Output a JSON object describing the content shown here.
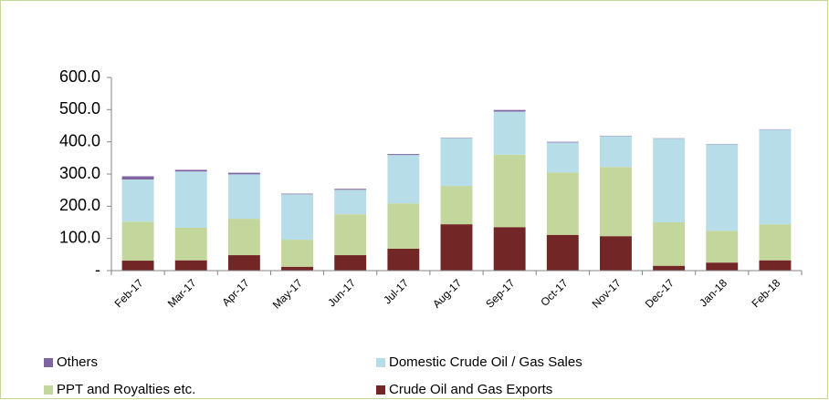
{
  "chart_data": {
    "type": "stacked_bar",
    "categories": [
      "Feb-17",
      "Mar-17",
      "Apr-17",
      "May-17",
      "Jun-17",
      "Jul-17",
      "Aug-17",
      "Sep-17",
      "Oct-17",
      "Nov-17",
      "Dec-17",
      "Jan-18",
      "Feb-18"
    ],
    "series": [
      {
        "name": "Others",
        "color": "#8064a2",
        "values": [
          10,
          5,
          5,
          2,
          3,
          3,
          1,
          5,
          2,
          1,
          1,
          1,
          1
        ]
      },
      {
        "name": "Domestic Crude Oil / Gas Sales",
        "color": "#b7dee8",
        "values": [
          131,
          175,
          138,
          141,
          76,
          150,
          149,
          134,
          93,
          96,
          260,
          268,
          294
        ]
      },
      {
        "name": "PPT and Royalties etc.",
        "color": "#c3d69b",
        "values": [
          121,
          101,
          113,
          84,
          127,
          141,
          119,
          225,
          194,
          215,
          135,
          99,
          112
        ]
      },
      {
        "name": "Crude Oil and Gas Exports",
        "color": "#722626",
        "values": [
          31,
          32,
          48,
          12,
          48,
          68,
          144,
          135,
          111,
          107,
          15,
          25,
          32
        ]
      }
    ],
    "ylim": [
      0,
      600
    ],
    "yticks": [
      {
        "value": 0,
        "label": "-"
      },
      {
        "value": 100,
        "label": "100.0"
      },
      {
        "value": 200,
        "label": "200.0"
      },
      {
        "value": 300,
        "label": "300.0"
      },
      {
        "value": 400,
        "label": "400.0"
      },
      {
        "value": 500,
        "label": "500.0"
      },
      {
        "value": 600,
        "label": "600.0"
      }
    ]
  }
}
